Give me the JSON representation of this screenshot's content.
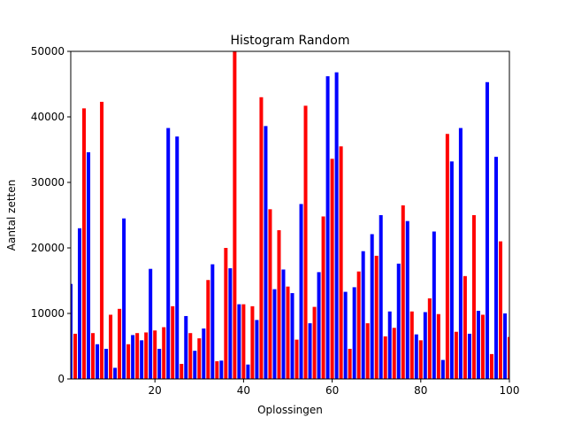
{
  "chart_data": {
    "type": "bar",
    "title": "Histogram Random",
    "xlabel": "Oplossingen",
    "ylabel": "Aantal zetten",
    "xlim": [
      1,
      100
    ],
    "ylim": [
      0,
      50000
    ],
    "xticks": [
      20,
      40,
      60,
      80,
      100
    ],
    "yticks": [
      0,
      10000,
      20000,
      30000,
      40000,
      50000
    ],
    "grid": false,
    "colors": {
      "odd": "#0000ff",
      "even": "#ff0000"
    },
    "x": [
      1,
      2,
      3,
      4,
      5,
      6,
      7,
      8,
      9,
      10,
      11,
      12,
      13,
      14,
      15,
      16,
      17,
      18,
      19,
      20,
      21,
      22,
      23,
      24,
      25,
      26,
      27,
      28,
      29,
      30,
      31,
      32,
      33,
      34,
      35,
      36,
      37,
      38,
      39,
      40,
      41,
      42,
      43,
      44,
      45,
      46,
      47,
      48,
      49,
      50,
      51,
      52,
      53,
      54,
      55,
      56,
      57,
      58,
      59,
      60,
      61,
      62,
      63,
      64,
      65,
      66,
      67,
      68,
      69,
      70,
      71,
      72,
      73,
      74,
      75,
      76,
      77,
      78,
      79,
      80,
      81,
      82,
      83,
      84,
      85,
      86,
      87,
      88,
      89,
      90,
      91,
      92,
      93,
      94,
      95,
      96,
      97,
      98,
      99,
      100
    ],
    "values": [
      14500,
      6900,
      23000,
      41300,
      34600,
      7000,
      5300,
      42300,
      4600,
      9800,
      1700,
      10700,
      24500,
      5300,
      6700,
      7000,
      5900,
      7100,
      16800,
      7400,
      4600,
      7900,
      38300,
      11100,
      37000,
      2300,
      9600,
      7000,
      4300,
      6200,
      7700,
      15100,
      17500,
      2700,
      2800,
      20000,
      16900,
      50000,
      11400,
      11400,
      2200,
      11100,
      9000,
      43000,
      38600,
      25900,
      13700,
      22700,
      16700,
      14100,
      13100,
      6000,
      26700,
      41700,
      8500,
      11000,
      16300,
      24800,
      46200,
      33600,
      46800,
      35500,
      13300,
      4600,
      14000,
      16400,
      19500,
      8500,
      22100,
      18800,
      25000,
      6500,
      10300,
      7800,
      17600,
      26500,
      24100,
      10300,
      6800,
      5900,
      10200,
      12300,
      22500,
      9900,
      2900,
      37400,
      33200,
      7200,
      38300,
      15700,
      6900,
      25000,
      10400,
      9800,
      45300,
      3800,
      33900,
      21000,
      10000,
      6400
    ]
  }
}
